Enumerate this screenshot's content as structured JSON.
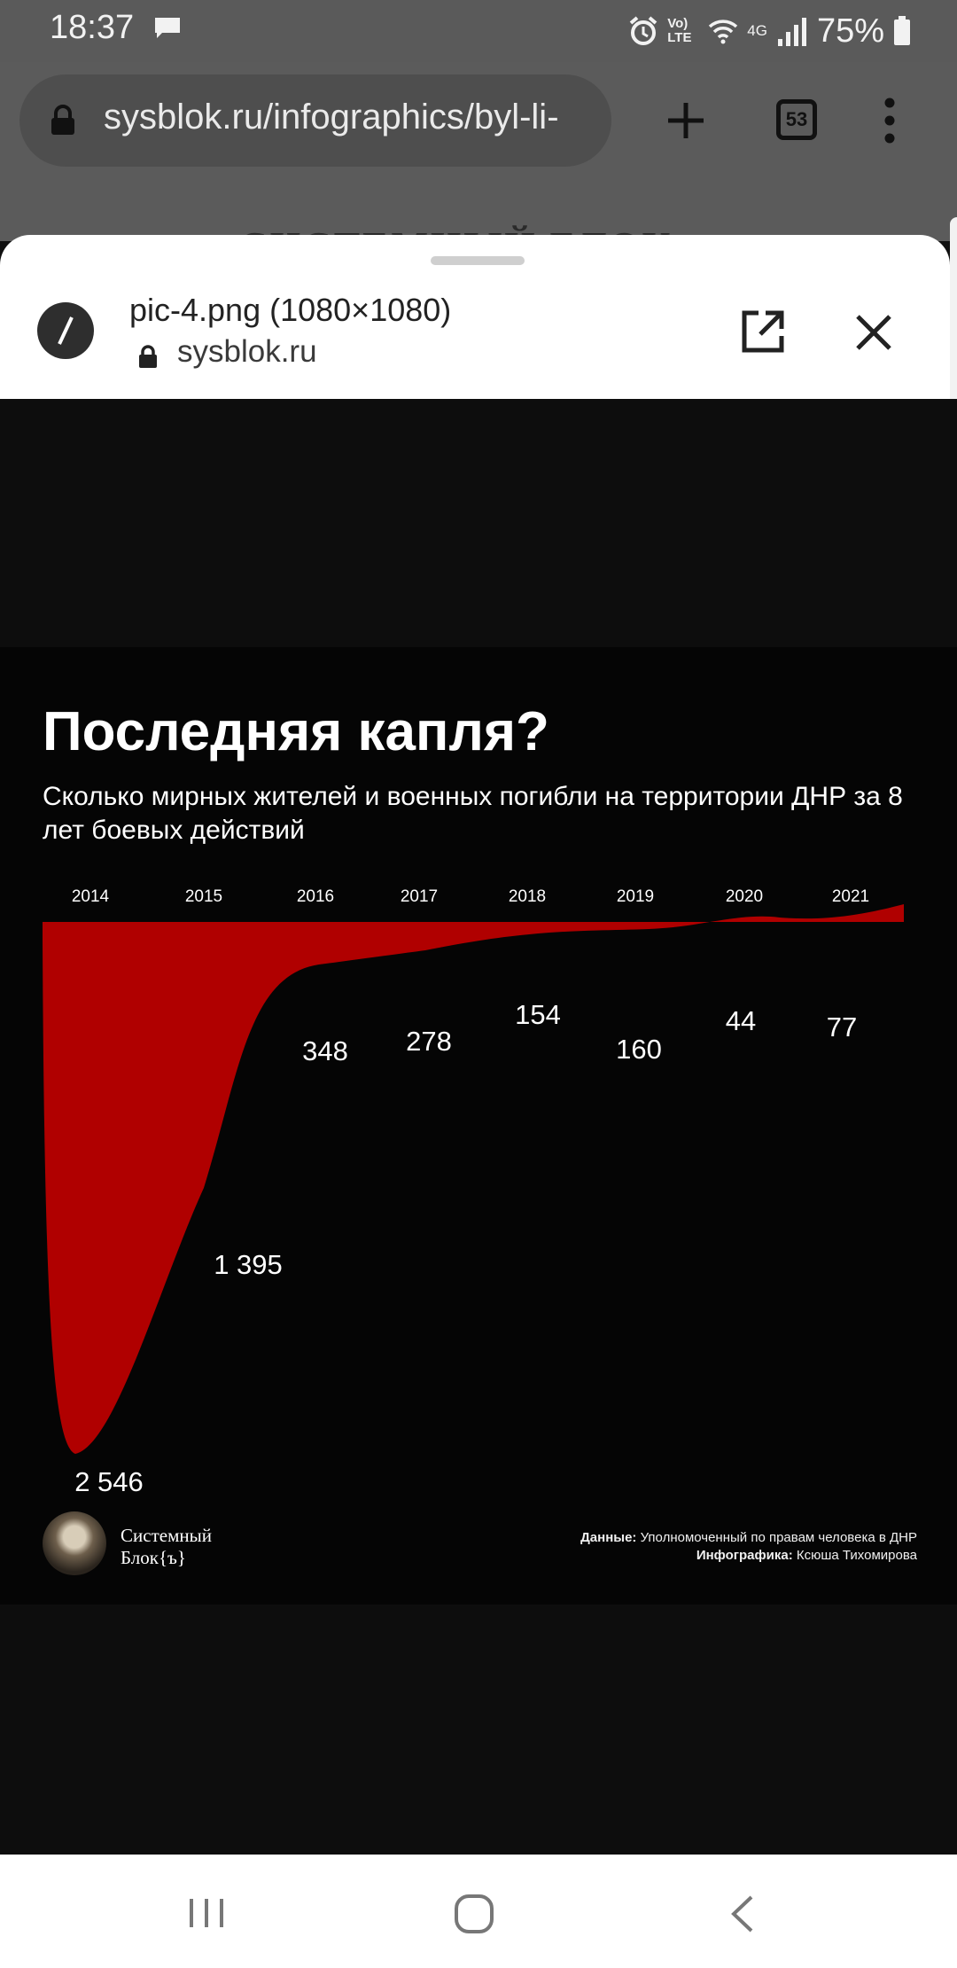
{
  "status_bar": {
    "time": "18:37",
    "network": "Vo) LTE",
    "signal_type": "4G",
    "battery": "75%"
  },
  "browser": {
    "url": "sysblok.ru/infographics/byl-li-",
    "tab_count": "53",
    "page_header_behind": "СИСТЕМНЫЙ БЛОК"
  },
  "sheet": {
    "title": "pic-4.png (1080×1080)",
    "host": "sysblok.ru"
  },
  "infographic": {
    "title": "Последняя капля?",
    "subtitle": "Сколько мирных жителей и военных погибли на территории ДНР за 8 лет боевых действий",
    "logo_line1": "Системный",
    "logo_line2": "Блок{ъ}",
    "credits_data_label": "Данные:",
    "credits_data": "Уполномоченный по правам человека в ДНР",
    "credits_design_label": "Инфографика:",
    "credits_design": "Ксюша Тихомирова"
  },
  "chart_data": {
    "type": "area",
    "categories": [
      "2014",
      "2015",
      "2016",
      "2017",
      "2018",
      "2019",
      "2020",
      "2021"
    ],
    "values": [
      2546,
      1395,
      348,
      278,
      154,
      160,
      44,
      77
    ],
    "value_labels": [
      "2 546",
      "1 395",
      "348",
      "278",
      "154",
      "160",
      "44",
      "77"
    ],
    "ylim": [
      0,
      2546
    ],
    "inverted": true,
    "grid": false,
    "color": "#b00000"
  }
}
